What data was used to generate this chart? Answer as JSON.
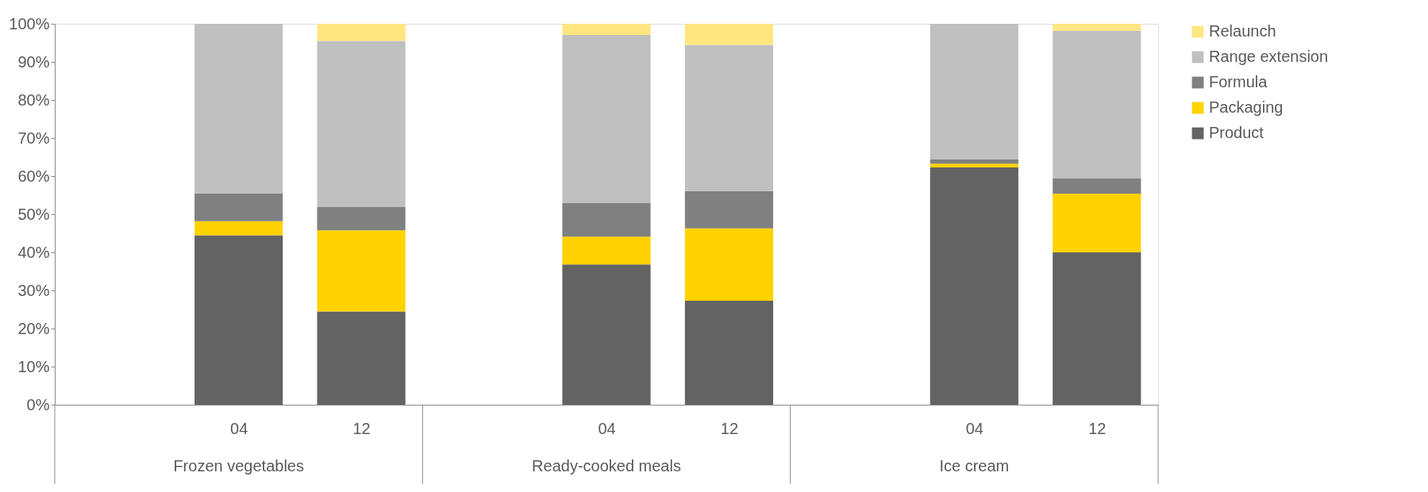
{
  "chart_data": {
    "type": "bar",
    "stacked": true,
    "categories": [
      null,
      "04",
      "12",
      null,
      "04",
      "12",
      null,
      "04",
      "12"
    ],
    "series": [
      {
        "name": "Product",
        "color": "#636363",
        "values": [
          null,
          44.5,
          24.5,
          null,
          36.8,
          27.3,
          null,
          62.3,
          40.0
        ]
      },
      {
        "name": "Packaging",
        "color": "#ffd200",
        "values": [
          null,
          3.7,
          21.3,
          null,
          7.3,
          19.0,
          null,
          1.0,
          15.4
        ]
      },
      {
        "name": "Formula",
        "color": "#808080",
        "values": [
          null,
          7.3,
          6.2,
          null,
          8.9,
          9.8,
          null,
          1.2,
          4.1
        ]
      },
      {
        "name": "Range extension",
        "color": "#c0c0c0",
        "values": [
          null,
          44.5,
          43.5,
          null,
          44.1,
          38.4,
          null,
          35.5,
          38.7
        ]
      },
      {
        "name": "Relaunch",
        "color": "#ffe680",
        "values": [
          null,
          0,
          4.5,
          null,
          2.9,
          5.5,
          null,
          0,
          1.8
        ]
      }
    ],
    "ylim": [
      0,
      100
    ],
    "yticks": [
      {
        "value": 0,
        "label": "0%"
      },
      {
        "value": 10,
        "label": "10%"
      },
      {
        "value": 20,
        "label": "20%"
      },
      {
        "value": 30,
        "label": "30%"
      },
      {
        "value": 40,
        "label": "40%"
      },
      {
        "value": 50,
        "label": "50%"
      },
      {
        "value": 60,
        "label": "60%"
      },
      {
        "value": 70,
        "label": "70%"
      },
      {
        "value": 80,
        "label": "80%"
      },
      {
        "value": 90,
        "label": "90%"
      },
      {
        "value": 100,
        "label": "100%"
      }
    ],
    "annotations": [
      "Frozen vegetables",
      "Ready-cooked meals",
      "Ice cream"
    ],
    "grid": false,
    "legend": "right"
  }
}
